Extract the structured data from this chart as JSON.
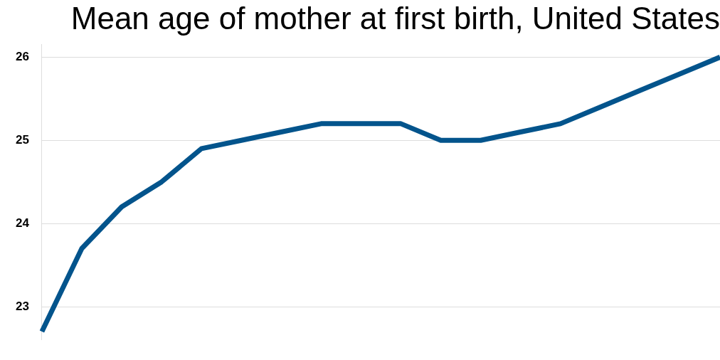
{
  "chart_data": {
    "type": "line",
    "title": "Mean age of mother at first birth, United States",
    "categories": [
      null,
      null,
      null,
      null,
      null,
      null,
      null,
      null,
      null,
      null,
      null,
      null,
      null,
      null,
      null,
      null,
      null,
      null
    ],
    "series": [
      {
        "color": "#03548c",
        "values": [
          22.7,
          23.7,
          24.2,
          24.5,
          24.9,
          25.0,
          25.1,
          25.2,
          25.2,
          25.2,
          25.0,
          25.0,
          25.1,
          25.2,
          25.4,
          25.6,
          25.8,
          26.0
        ]
      }
    ],
    "ylim": [
      22.6,
      26.15
    ],
    "yticks": [
      23,
      24,
      25,
      26
    ],
    "grid": "y",
    "tick_labels": "y",
    "legend": false,
    "marker": "none",
    "line_style": "solid"
  }
}
